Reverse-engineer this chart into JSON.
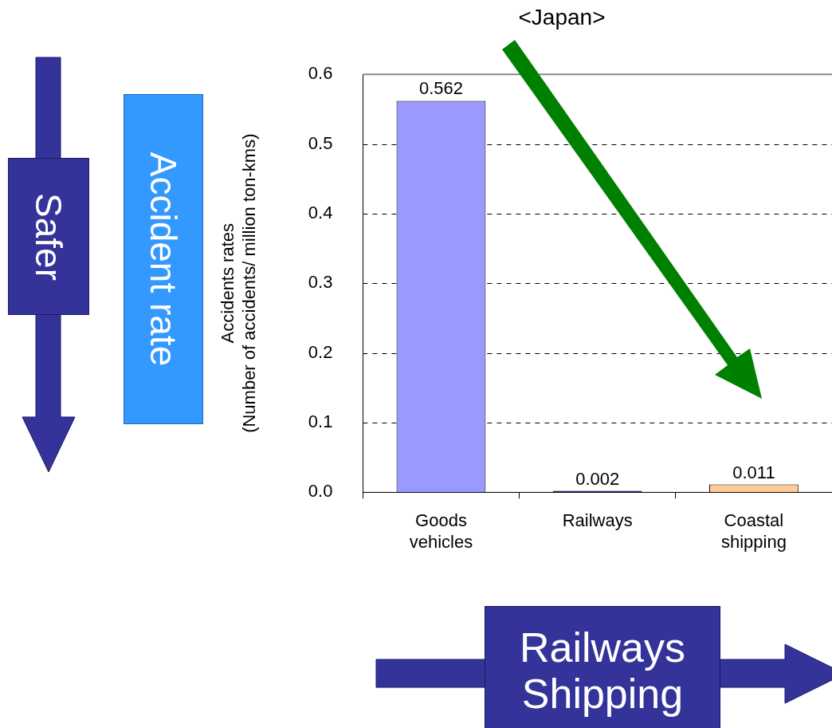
{
  "chart_data": {
    "type": "bar",
    "title": "<Japan>",
    "ylabel": "Accidents rates\n(Number of accidents/ million ton-kms)",
    "categories": [
      "Goods vehicles",
      "Railways",
      "Coastal shipping"
    ],
    "values": [
      0.562,
      0.002,
      0.011
    ],
    "colors": [
      "#9999ff",
      "#000080",
      "#ffcc99"
    ],
    "ylim": [
      0,
      0.6
    ],
    "yticks": [
      {
        "value": 0,
        "label": "0.0"
      },
      0.1,
      0.2,
      0.3,
      0.4,
      0.5,
      {
        "value": 0.6,
        "label": "0.6"
      }
    ],
    "grid": "y",
    "data_labels": true,
    "annotations": [
      "Safer",
      "Accident rate",
      "Railways\nShipping"
    ]
  }
}
